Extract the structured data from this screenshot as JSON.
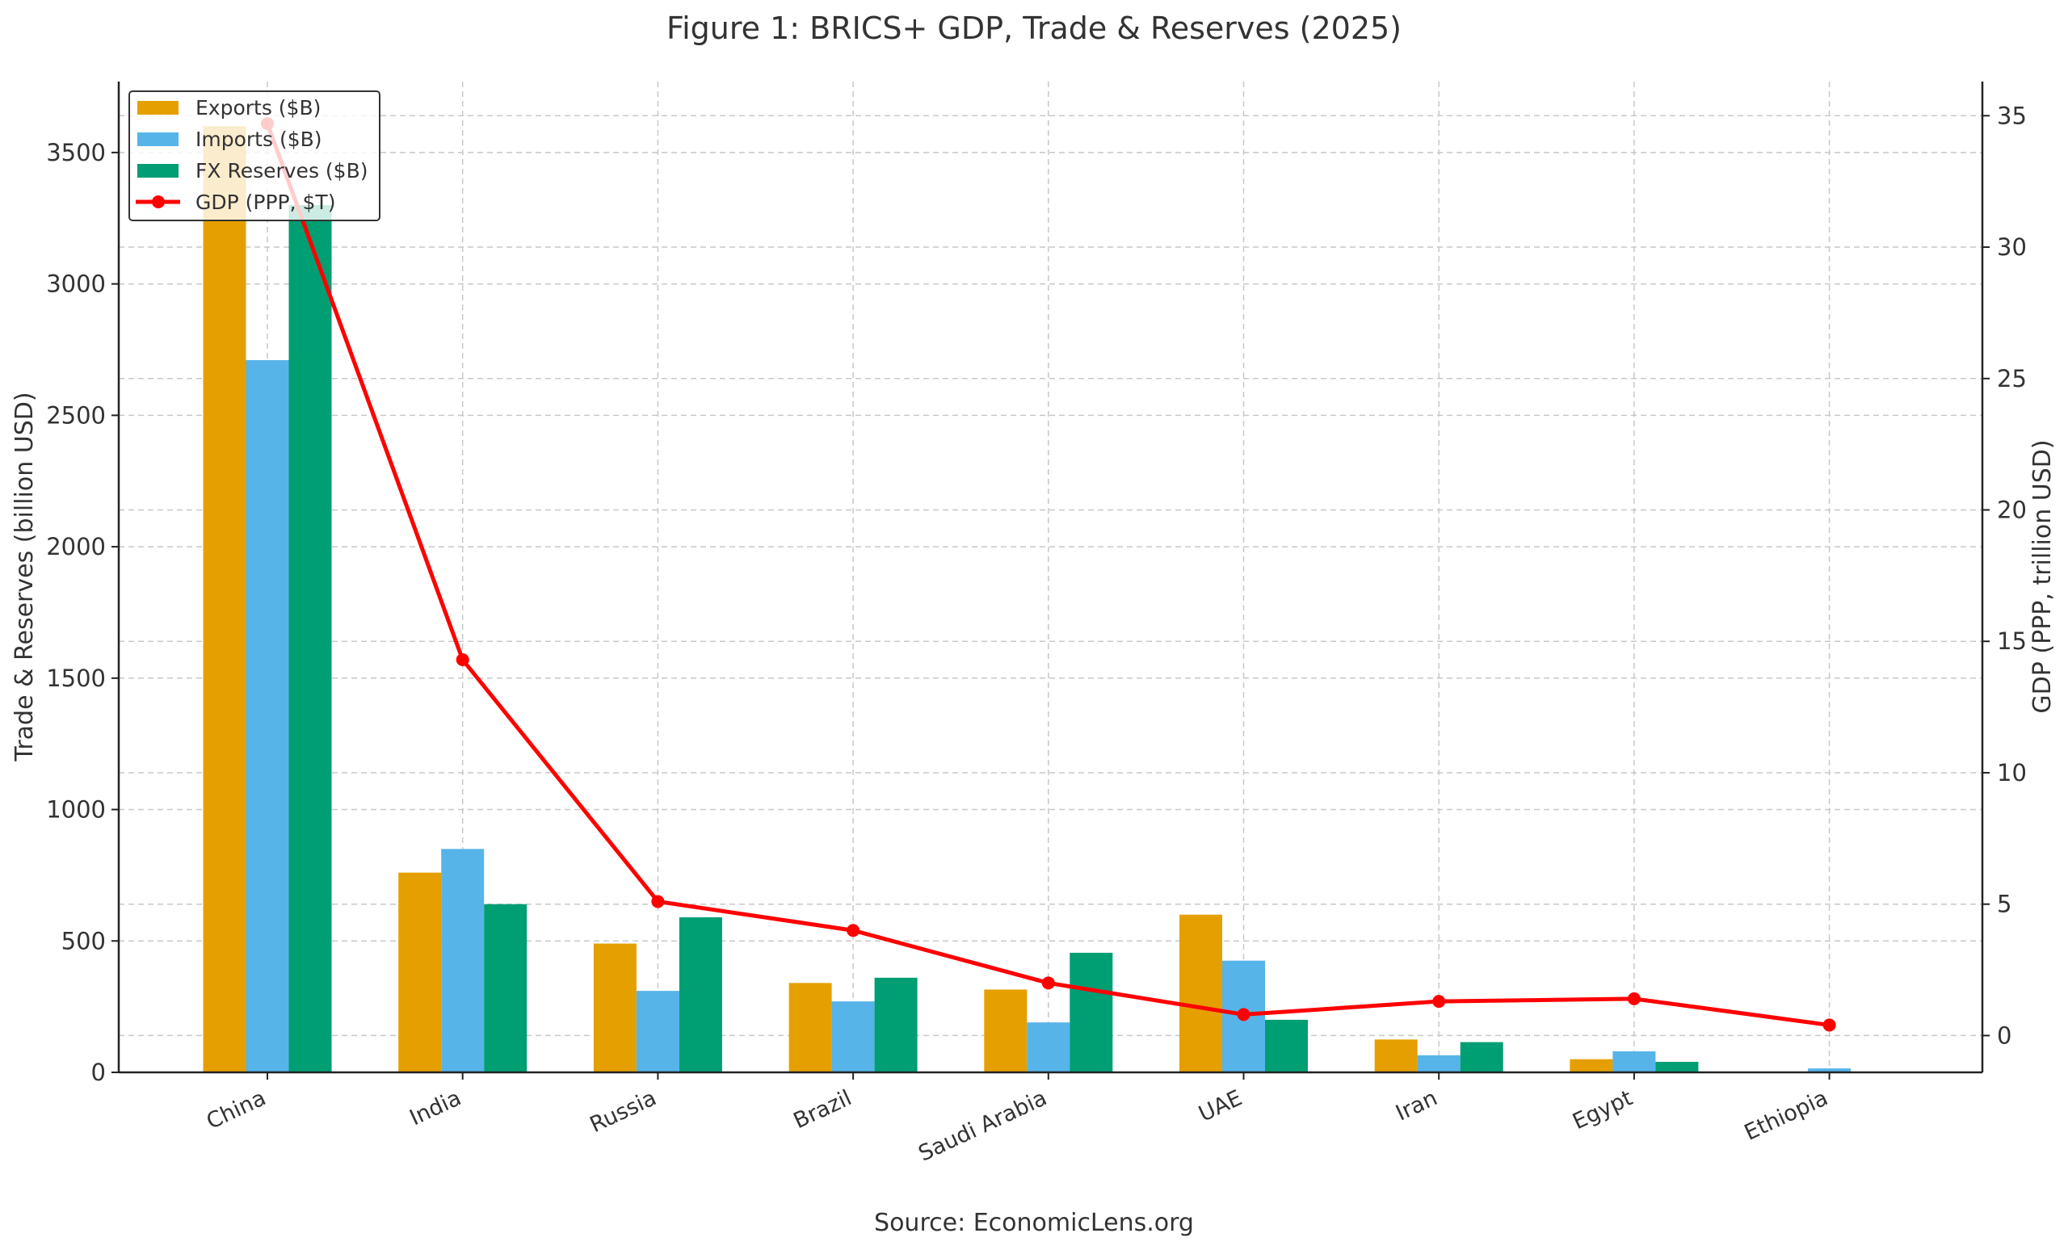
{
  "chart_data": {
    "type": "bar+line",
    "title": "Figure 1: BRICS+ GDP, Trade & Reserves (2025)",
    "source": "Source: EconomicLens.org",
    "categories": [
      "China",
      "India",
      "Russia",
      "Brazil",
      "Saudi Arabia",
      "UAE",
      "Iran",
      "Egypt",
      "Ethiopia"
    ],
    "ylabel_left": "Trade & Reserves (billion USD)",
    "ylabel_right": "GDP (PPP, trillion USD)",
    "ylim_left": [
      0,
      3770
    ],
    "ylim_right": [
      -1.4,
      36.3
    ],
    "yticks_left": [
      0,
      500,
      1000,
      1500,
      2000,
      2500,
      3000,
      3500
    ],
    "yticks_right": [
      0,
      5,
      10,
      15,
      20,
      25,
      30,
      35
    ],
    "grid": true,
    "legend_position": "top-left",
    "series": [
      {
        "name": "Exports ($B)",
        "type": "bar",
        "axis": "left",
        "color": "#E69F00",
        "values": [
          3600,
          760,
          490,
          340,
          315,
          600,
          125,
          50,
          0
        ]
      },
      {
        "name": "Imports ($B)",
        "type": "bar",
        "axis": "left",
        "color": "#56B4E9",
        "values": [
          2710,
          850,
          310,
          270,
          190,
          425,
          65,
          80,
          15
        ]
      },
      {
        "name": "FX Reserves ($B)",
        "type": "bar",
        "axis": "left",
        "color": "#009E73",
        "values": [
          3300,
          640,
          590,
          360,
          455,
          200,
          115,
          40,
          0
        ]
      },
      {
        "name": "GDP (PPP, $T)",
        "type": "line",
        "axis": "right",
        "color": "#FF0000",
        "values": [
          34.7,
          14.3,
          5.1,
          4.0,
          2.0,
          0.8,
          1.3,
          1.4,
          0.4
        ]
      }
    ]
  }
}
